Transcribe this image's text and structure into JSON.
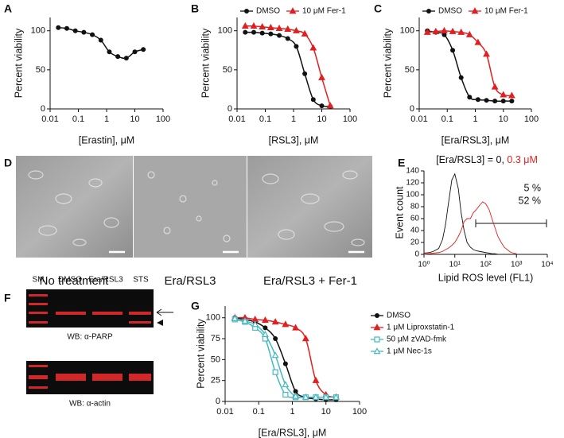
{
  "chart_data": [
    {
      "type": "line",
      "panel": "A",
      "xlabel": "[Erastin], μM",
      "ylabel": "Percent viability",
      "log_x": true,
      "xlim": [
        0.01,
        100
      ],
      "xticks": [
        0.01,
        0.1,
        1,
        10,
        100
      ],
      "ylim": [
        0,
        117
      ],
      "yticks": [
        0,
        50,
        100
      ],
      "x": [
        0.0195,
        0.039,
        0.078,
        0.156,
        0.3125,
        0.625,
        1.25,
        2.5,
        5,
        10,
        20
      ],
      "series": [
        {
          "color": "#111111",
          "marker": "circle",
          "values": [
            104,
            103,
            100,
            98,
            95,
            88,
            73,
            67,
            65,
            73,
            76
          ]
        }
      ]
    },
    {
      "type": "line",
      "panel": "B",
      "xlabel": "[RSL3], μM",
      "ylabel": "Percent viability",
      "log_x": true,
      "legend": "top",
      "xlim": [
        0.01,
        100
      ],
      "xticks": [
        0.01,
        0.1,
        1,
        10,
        100
      ],
      "ylim": [
        0,
        117
      ],
      "yticks": [
        0,
        50,
        100
      ],
      "x": [
        0.0195,
        0.039,
        0.078,
        0.156,
        0.3125,
        0.625,
        1.25,
        2.5,
        5,
        10,
        20
      ],
      "series": [
        {
          "name": "DMSO",
          "color": "#111111",
          "marker": "circle",
          "values": [
            98,
            98,
            97,
            96,
            94,
            90,
            80,
            45,
            12,
            4,
            3
          ]
        },
        {
          "name": "10 μM Fer-1",
          "color": "#e02020",
          "marker": "triangle",
          "values": [
            106,
            106,
            105,
            104,
            103,
            102,
            100,
            96,
            78,
            40,
            4
          ]
        }
      ]
    },
    {
      "type": "line",
      "panel": "C",
      "xlabel": "[Era/RSL3], μM",
      "ylabel": "Percent viability",
      "log_x": true,
      "legend": "top",
      "xlim": [
        0.01,
        100
      ],
      "xticks": [
        0.01,
        0.1,
        1,
        10,
        100
      ],
      "ylim": [
        0,
        117
      ],
      "yticks": [
        0,
        50,
        100
      ],
      "x": [
        0.0195,
        0.039,
        0.078,
        0.156,
        0.3125,
        0.625,
        1.25,
        2.5,
        5,
        10,
        20
      ],
      "series": [
        {
          "name": "DMSO",
          "color": "#111111",
          "marker": "circle",
          "values": [
            100,
            98,
            95,
            75,
            40,
            15,
            12,
            11,
            10,
            10,
            10
          ]
        },
        {
          "name": "10 μM Fer-1",
          "color": "#e02020",
          "marker": "triangle",
          "values": [
            98,
            99,
            100,
            99,
            98,
            95,
            85,
            70,
            28,
            18,
            17
          ]
        }
      ]
    },
    {
      "type": "line",
      "panel": "E",
      "title": "[Era/RSL3] = 0, ",
      "title_highlight": "0.3 μM",
      "xlabel": "Lipid ROS level (FL1)",
      "ylabel": "Event count",
      "log_x": true,
      "xlim": [
        1,
        10000
      ],
      "xticks": [
        {
          "value": 1,
          "label": "10⁰"
        },
        {
          "value": 10,
          "label": "10¹"
        },
        {
          "value": 100,
          "label": "10²"
        },
        {
          "value": 1000,
          "label": "10³"
        },
        {
          "value": 10000,
          "label": "10⁴"
        }
      ],
      "ylim": [
        0,
        140
      ],
      "yticks": [
        0,
        20,
        40,
        60,
        80,
        100,
        120,
        140
      ],
      "annotations": [
        {
          "text": "5 %",
          "color": "#111111"
        },
        {
          "text": "52 %",
          "color": "#e02020"
        }
      ],
      "x": [
        1,
        1.5,
        2,
        3,
        4,
        5,
        6,
        8,
        10,
        13,
        16,
        20,
        25,
        32,
        40,
        50,
        63,
        80,
        100,
        130,
        160,
        200,
        250,
        320,
        400,
        500,
        630,
        800,
        1000
      ],
      "series": [
        {
          "color": "#111111",
          "marker": "none",
          "values": [
            2,
            3,
            5,
            10,
            25,
            50,
            80,
            125,
            135,
            110,
            70,
            40,
            20,
            12,
            8,
            6,
            5,
            4,
            3,
            2,
            1,
            1,
            0,
            0,
            0,
            0,
            0,
            0,
            0
          ]
        },
        {
          "color": "#e02020",
          "marker": "none",
          "values": [
            0,
            1,
            2,
            3,
            5,
            8,
            10,
            15,
            20,
            30,
            40,
            55,
            60,
            60,
            70,
            75,
            82,
            88,
            85,
            75,
            60,
            45,
            30,
            20,
            12,
            8,
            4,
            2,
            1
          ]
        }
      ]
    },
    {
      "type": "line",
      "panel": "G",
      "xlabel": "[Era/RSL3], μM",
      "ylabel": "Percent viability",
      "log_x": true,
      "legend": "right",
      "xlim": [
        0.01,
        100
      ],
      "xticks": [
        0.01,
        0.1,
        1,
        10,
        100
      ],
      "ylim": [
        0,
        114
      ],
      "yticks": [
        0,
        25,
        50,
        75,
        100
      ],
      "x": [
        0.0195,
        0.039,
        0.078,
        0.156,
        0.3125,
        0.625,
        1.25,
        2.5,
        5,
        10,
        20
      ],
      "series": [
        {
          "name": "DMSO",
          "color": "#111111",
          "marker": "circle",
          "values": [
            100,
            98,
            95,
            88,
            75,
            45,
            12,
            5,
            3,
            2,
            2
          ]
        },
        {
          "name": "1 μM Liproxstatin-1",
          "color": "#e02020",
          "marker": "triangle",
          "values": [
            100,
            100,
            98,
            97,
            95,
            92,
            88,
            75,
            25,
            8,
            5
          ]
        },
        {
          "name": "50 μM zVAD-fmk",
          "color": "#48b8c0",
          "marker": "square-open",
          "values": [
            98,
            95,
            88,
            75,
            35,
            8,
            5,
            5,
            5,
            5,
            5
          ]
        },
        {
          "name": "1 μM Nec-1s",
          "color": "#48b8c0",
          "marker": "triangle-open",
          "values": [
            99,
            96,
            92,
            80,
            55,
            20,
            6,
            5,
            5,
            5,
            5
          ]
        }
      ]
    }
  ],
  "panel_d": {
    "letter": "D",
    "captions": [
      "No treatment",
      "Era/RSL3",
      "Era/RSL3 + Fer-1"
    ]
  },
  "panel_f": {
    "letter": "F",
    "lanes": [
      "SM",
      "DMSO",
      "Era/RSL3",
      "STS"
    ],
    "blots": [
      "WB: α-PARP",
      "WB: α-actin"
    ]
  }
}
